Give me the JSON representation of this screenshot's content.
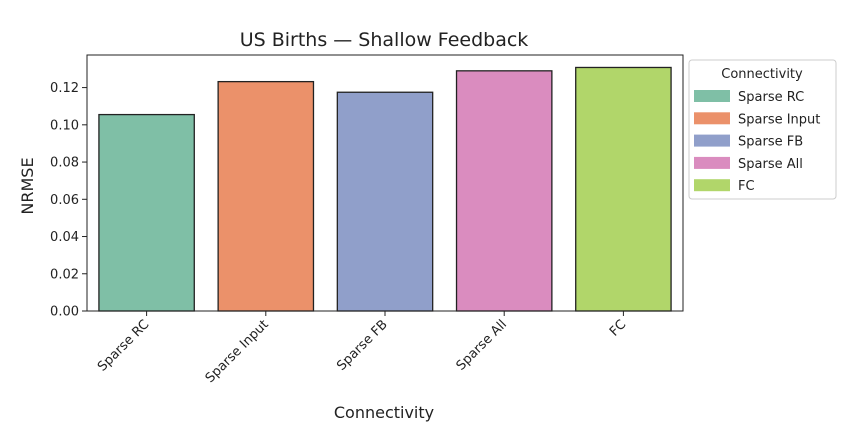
{
  "chart_data": {
    "type": "bar",
    "title": "US Births — Shallow Feedback",
    "xlabel": "Connectivity",
    "ylabel": "NRMSE",
    "categories": [
      "Sparse RC",
      "Sparse Input",
      "Sparse FB",
      "Sparse All",
      "FC"
    ],
    "values": [
      0.1055,
      0.1232,
      0.1175,
      0.129,
      0.1308
    ],
    "colors": [
      "#7fbfa6",
      "#eb916a",
      "#909fca",
      "#da8cbf",
      "#b1d66a"
    ],
    "ylim": [
      0,
      0.1375
    ],
    "yticks": [
      "0.00",
      "0.02",
      "0.04",
      "0.06",
      "0.08",
      "0.10",
      "0.12"
    ],
    "grid": false,
    "legend": {
      "title": "Connectivity",
      "placement": "outside-right",
      "entries": [
        "Sparse RC",
        "Sparse Input",
        "Sparse FB",
        "Sparse All",
        "FC"
      ]
    }
  }
}
